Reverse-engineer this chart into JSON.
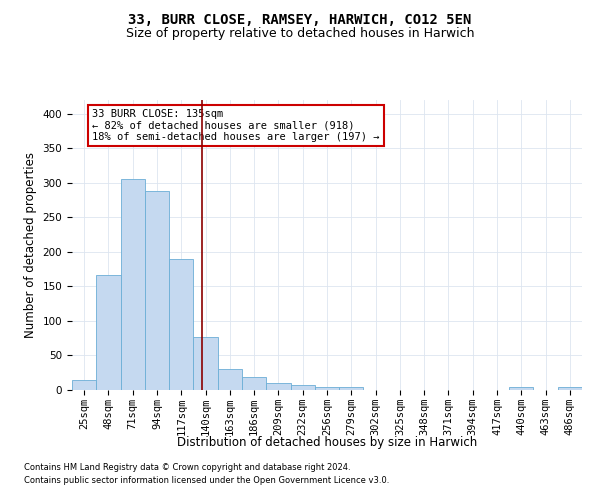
{
  "title": "33, BURR CLOSE, RAMSEY, HARWICH, CO12 5EN",
  "subtitle": "Size of property relative to detached houses in Harwich",
  "xlabel": "Distribution of detached houses by size in Harwich",
  "ylabel": "Number of detached properties",
  "bar_color": "#c5d9f0",
  "bar_edge_color": "#6baed6",
  "categories": [
    "25sqm",
    "48sqm",
    "71sqm",
    "94sqm",
    "117sqm",
    "140sqm",
    "163sqm",
    "186sqm",
    "209sqm",
    "232sqm",
    "256sqm",
    "279sqm",
    "302sqm",
    "325sqm",
    "348sqm",
    "371sqm",
    "394sqm",
    "417sqm",
    "440sqm",
    "463sqm",
    "486sqm"
  ],
  "values": [
    14,
    167,
    305,
    288,
    190,
    77,
    31,
    19,
    10,
    7,
    4,
    5,
    0,
    0,
    0,
    0,
    0,
    0,
    5,
    0,
    5
  ],
  "ylim": [
    0,
    420
  ],
  "vline_x": 4.87,
  "annotation_text": "33 BURR CLOSE: 135sqm\n← 82% of detached houses are smaller (918)\n18% of semi-detached houses are larger (197) →",
  "annotation_box_color": "#ffffff",
  "annotation_box_edge_color": "#cc0000",
  "vline_color": "#8b0000",
  "footnote1": "Contains HM Land Registry data © Crown copyright and database right 2024.",
  "footnote2": "Contains public sector information licensed under the Open Government Licence v3.0.",
  "bg_color": "#ffffff",
  "grid_color": "#dde5f0",
  "title_fontsize": 10,
  "subtitle_fontsize": 9,
  "tick_fontsize": 7.5,
  "ylabel_fontsize": 8.5,
  "xlabel_fontsize": 8.5,
  "annot_fontsize": 7.5,
  "footnote_fontsize": 6.0
}
